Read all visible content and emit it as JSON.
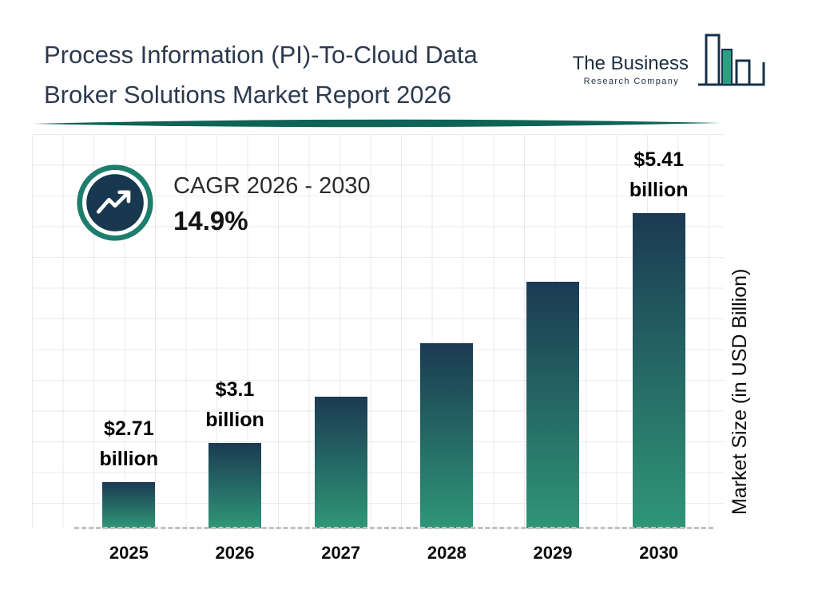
{
  "header": {
    "title_line1": "Process Information (PI)-To-Cloud Data",
    "title_line2": "Broker Solutions Market Report 2026",
    "logo": {
      "name_line1": "The Business",
      "name_line2": "Research Company"
    }
  },
  "cagr": {
    "label": "CAGR 2026 - 2030",
    "value": "14.9%"
  },
  "chart_data": {
    "type": "bar",
    "title": "Process Information (PI)-To-Cloud Data Broker Solutions Market Report 2026",
    "categories": [
      "2025",
      "2026",
      "2027",
      "2028",
      "2029",
      "2030"
    ],
    "values": [
      2.71,
      3.1,
      3.56,
      4.09,
      4.7,
      5.41
    ],
    "bar_labels": [
      {
        "amount": "$2.71",
        "unit": "billion"
      },
      {
        "amount": "$3.1",
        "unit": "billion"
      },
      null,
      null,
      null,
      {
        "amount": "$5.41",
        "unit": "billion"
      }
    ],
    "xlabel": "",
    "ylabel": "Market Size (in USD Billion)",
    "ylim": [
      2.25,
      6.05
    ],
    "grid": true,
    "legend": "none",
    "cagr_2026_2030": "14.9%"
  },
  "colors": {
    "bar_top": "#1b3a52",
    "bar_bottom": "#2f9677",
    "divider": "#0e6355",
    "icon_ring": "#1e7e6d",
    "icon_fill": "#17384e",
    "logo_navy": "#16324a",
    "logo_teal": "#2e9e83"
  }
}
